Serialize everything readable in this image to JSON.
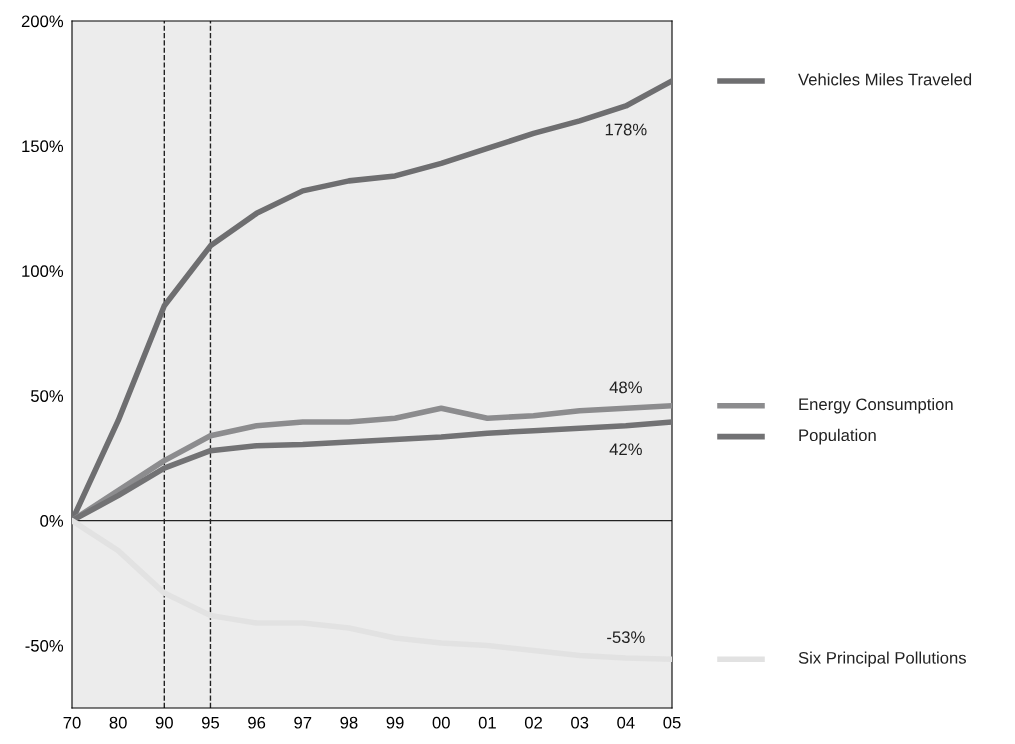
{
  "chart_data": {
    "type": "line",
    "categories": [
      "70",
      "80",
      "90",
      "95",
      "96",
      "97",
      "98",
      "99",
      "00",
      "01",
      "02",
      "03",
      "04",
      "05"
    ],
    "series": [
      {
        "name": "Vehicles Miles Traveled",
        "color": "#6e6e70",
        "values": [
          0,
          40,
          86,
          110,
          123,
          132,
          136,
          138,
          143,
          149,
          155,
          160,
          166,
          176
        ]
      },
      {
        "name": "Energy Consumption",
        "color": "#8c8c8e",
        "values": [
          0,
          12,
          24,
          34,
          38,
          39.5,
          39.5,
          41,
          45,
          41,
          42,
          44,
          45,
          46
        ]
      },
      {
        "name": "Population",
        "color": "#727274",
        "values": [
          0,
          10,
          21,
          28,
          30,
          30.5,
          31.5,
          32.5,
          33.5,
          35,
          36,
          37,
          38,
          39.5
        ]
      },
      {
        "name": "Six Principal Pollutions",
        "color": "#e2e2e2",
        "values": [
          0,
          -12,
          -29,
          -38,
          -41,
          -41,
          -43,
          -47,
          -49,
          -50,
          -52,
          -54,
          -55,
          -55.5
        ]
      }
    ],
    "annotations": [
      {
        "text": "178%",
        "x": "04",
        "y": 166
      },
      {
        "text": "48%",
        "x": "04",
        "y": 45
      },
      {
        "text": "42%",
        "x": "04",
        "y": 38
      },
      {
        "text": "-53%",
        "x": "04",
        "y": -55
      }
    ],
    "ylim": [
      -75,
      200
    ],
    "yticks": [
      {
        "value": 0,
        "label": "0%"
      },
      {
        "value": 50,
        "label": "50%"
      },
      {
        "value": 100,
        "label": "100%"
      },
      {
        "value": 150,
        "label": "150%"
      },
      {
        "value": 200,
        "label": "200%"
      },
      {
        "value": -50,
        "label": "-50%"
      }
    ],
    "ref_lines": [
      {
        "axis": "x",
        "value": "90",
        "line_style": "dashed",
        "color": "#222222"
      },
      {
        "axis": "x",
        "value": "95",
        "line_style": "dashed",
        "color": "#222222"
      },
      {
        "axis": "y",
        "value": 0,
        "line_style": "solid",
        "color": "#222222"
      }
    ],
    "legend": "right",
    "grid": false,
    "marker": "none",
    "line_style": "solid"
  }
}
